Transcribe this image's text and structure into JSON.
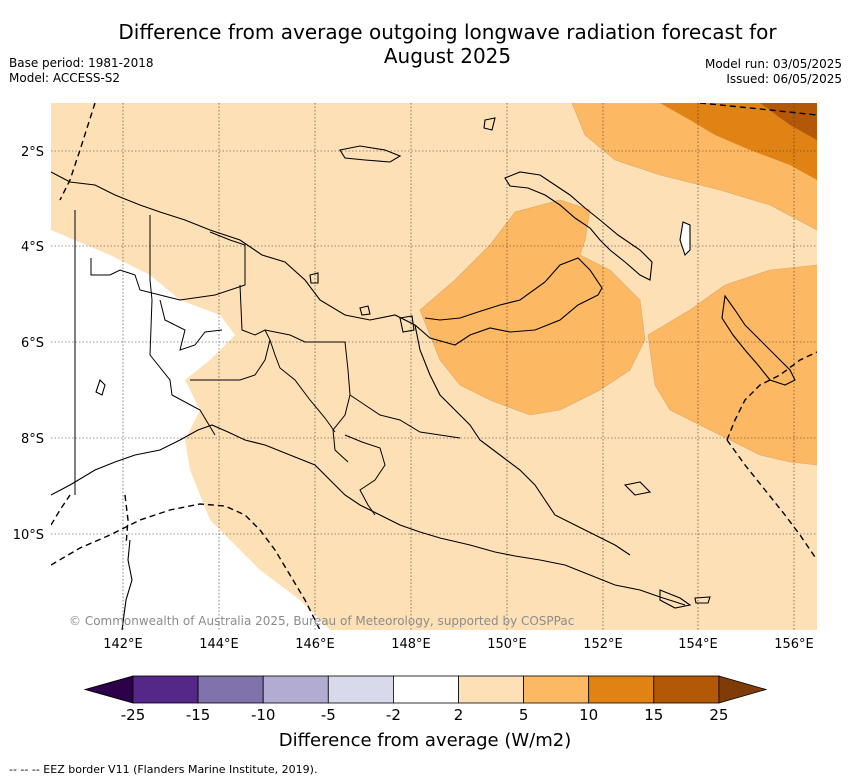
{
  "title": "Difference from average outgoing longwave radiation forecast for August 2025",
  "base_period": "Base period: 1981-2018",
  "model": "Model: ACCESS-S2",
  "model_run": "Model run: 03/05/2025",
  "issued": "Issued: 06/05/2025",
  "copyright": "© Commonwealth of Australia 2025, Bureau of Meteorology, supported by COSPPac",
  "map": {
    "lon_labels": [
      "142°E",
      "144°E",
      "146°E",
      "148°E",
      "150°E",
      "152°E",
      "154°E",
      "156°E"
    ],
    "lat_labels": [
      "2°S",
      "4°S",
      "6°S",
      "8°S",
      "10°S"
    ]
  },
  "colorbar": {
    "title": "Difference from average (W/m2)",
    "tick_labels": [
      "-25",
      "-15",
      "-10",
      "-5",
      "-2",
      "2",
      "5",
      "10",
      "15",
      "25"
    ],
    "colors": [
      "#2d004b",
      "#542788",
      "#8073ac",
      "#b2abd2",
      "#d8daeb",
      "#ffffff",
      "#fee0b6",
      "#fdb863",
      "#e08214",
      "#b35806",
      "#7f3b08"
    ]
  },
  "footer": "--  --  -- EEZ border V11 (Flanders Marine Institute, 2019)."
}
